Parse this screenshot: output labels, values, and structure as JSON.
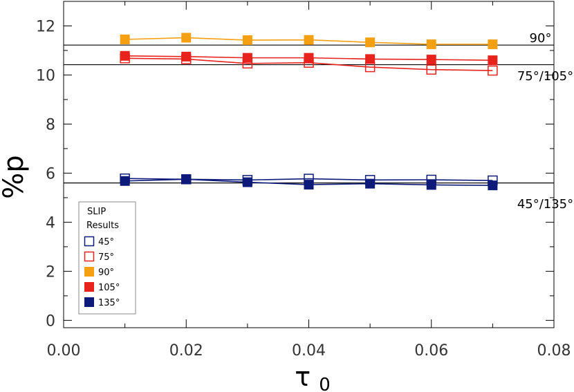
{
  "chart_data": {
    "type": "line",
    "xlabel": "τ",
    "xlabel_subscript": "0",
    "ylabel": "%p",
    "xlim": [
      0.0,
      0.08
    ],
    "ylim": [
      -0.3,
      13.0
    ],
    "x_ticks": [
      0.0,
      0.02,
      0.04,
      0.06,
      0.08
    ],
    "x_tick_labels": [
      "0.00",
      "0.02",
      "0.04",
      "0.06",
      "0.08"
    ],
    "x_minor_ticks": [
      0.01,
      0.03,
      0.05,
      0.07
    ],
    "y_ticks": [
      0,
      2,
      4,
      6,
      8,
      10,
      12
    ],
    "y_tick_labels": [
      "0",
      "2",
      "4",
      "6",
      "8",
      "10",
      "12"
    ],
    "y_minor_ticks": [
      1,
      3,
      5,
      7,
      9,
      11
    ],
    "grid": false,
    "legend": {
      "title_lines": [
        "SLIP",
        "Results"
      ],
      "placement": "lower-left"
    },
    "reference_lines": [
      {
        "y": 11.22,
        "label": "90°",
        "label_x": 0.076,
        "label_y": 11.5
      },
      {
        "y": 10.42,
        "label": "75°/105°",
        "label_x": 0.074,
        "label_y": 9.95
      },
      {
        "y": 5.6,
        "label": "45°/135°",
        "label_x": 0.074,
        "label_y": 4.75
      }
    ],
    "x": [
      0.01,
      0.02,
      0.03,
      0.04,
      0.05,
      0.06,
      0.07
    ],
    "series": [
      {
        "name": "45°",
        "color": "#0d1a7a",
        "filled": false,
        "values": [
          5.78,
          5.75,
          5.72,
          5.77,
          5.72,
          5.73,
          5.7
        ]
      },
      {
        "name": "75°",
        "color": "#e8221c",
        "filled": false,
        "values": [
          10.68,
          10.65,
          10.47,
          10.5,
          10.32,
          10.22,
          10.18
        ]
      },
      {
        "name": "90°",
        "color": "#f5a013",
        "filled": true,
        "values": [
          11.45,
          11.52,
          11.42,
          11.43,
          11.33,
          11.25,
          11.25
        ]
      },
      {
        "name": "105°",
        "color": "#e8221c",
        "filled": true,
        "values": [
          10.78,
          10.75,
          10.7,
          10.7,
          10.65,
          10.63,
          10.6
        ]
      },
      {
        "name": "135°",
        "color": "#0d1a7a",
        "filled": true,
        "values": [
          5.68,
          5.75,
          5.63,
          5.53,
          5.57,
          5.52,
          5.5
        ]
      }
    ]
  }
}
